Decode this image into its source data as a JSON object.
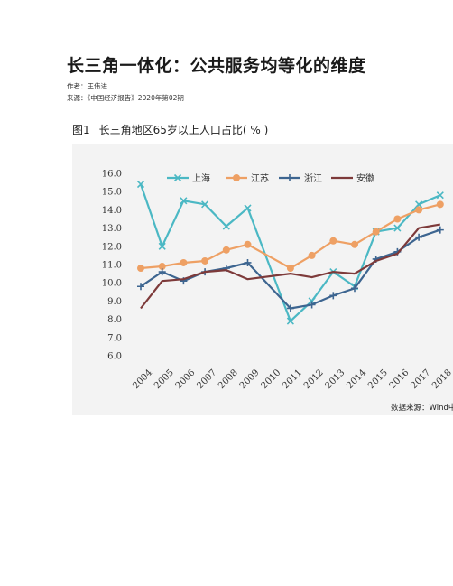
{
  "doc": {
    "title": "长三角一体化：公共服务均等化的维度",
    "author": "作者：王伟进",
    "source": "来源：《中国经济报告》2020年第02期",
    "figure_number": "图1",
    "figure_title": "长三角地区65岁以上人口占比( % )",
    "data_source": "数据来源：Wind中国"
  },
  "chart_data": {
    "type": "line",
    "title": "长三角地区65岁以上人口占比( % )",
    "xlabel": "",
    "ylabel": "",
    "ylim": [
      6.0,
      16.0
    ],
    "yticks": [
      "16.0",
      "15.0",
      "14.0",
      "13.0",
      "12.0",
      "11.0",
      "10.0",
      "9.0",
      "8.0",
      "7.0",
      "6.0"
    ],
    "categories": [
      "2004",
      "2005",
      "2006",
      "2007",
      "2008",
      "2009",
      "2010",
      "2011",
      "2012",
      "2013",
      "2014",
      "2015",
      "2016",
      "2017",
      "2018"
    ],
    "legend_position": "top",
    "grid": false,
    "series": [
      {
        "name": "上海",
        "color": "#4bb8c4",
        "marker": "x",
        "values": [
          15.4,
          12.0,
          14.5,
          14.3,
          13.1,
          14.1,
          null,
          7.9,
          9.0,
          10.6,
          9.8,
          12.8,
          13.0,
          14.3,
          14.8
        ]
      },
      {
        "name": "江苏",
        "color": "#eea064",
        "marker": "circle",
        "values": [
          10.8,
          10.9,
          11.1,
          11.2,
          11.8,
          12.1,
          null,
          10.8,
          11.5,
          12.3,
          12.1,
          12.8,
          13.5,
          14.0,
          14.3
        ]
      },
      {
        "name": "浙江",
        "color": "#3d6590",
        "marker": "plus",
        "values": [
          9.8,
          10.6,
          10.1,
          10.6,
          10.8,
          11.1,
          null,
          8.6,
          8.8,
          9.3,
          9.7,
          11.3,
          11.7,
          12.5,
          12.9
        ]
      },
      {
        "name": "安徽",
        "color": "#7d3a3a",
        "marker": "none",
        "values": [
          8.6,
          10.1,
          10.2,
          10.6,
          10.7,
          10.2,
          null,
          10.5,
          10.3,
          10.6,
          10.5,
          11.2,
          11.6,
          13.0,
          13.2
        ]
      }
    ]
  }
}
